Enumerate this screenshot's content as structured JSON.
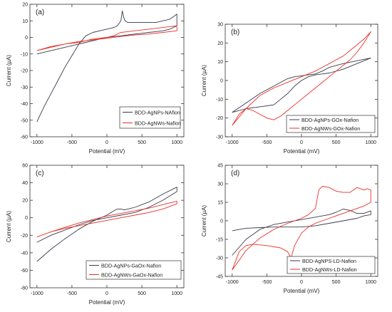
{
  "chart_data": [
    {
      "panel_label": "(a)",
      "type": "line",
      "xlabel": "Potential (mV)",
      "ylabel": "Current (µA)",
      "xlim": [
        -1100,
        1100
      ],
      "ylim": [
        -60,
        20
      ],
      "xticks": [
        "-1000",
        "-500",
        "0",
        "500",
        "1000"
      ],
      "xtick_values": [
        -1000,
        -500,
        0,
        500,
        1000
      ],
      "yticks": [
        "-60",
        "-50",
        "-40",
        "-30",
        "-20",
        "-10",
        "0",
        "10",
        "20"
      ],
      "ytick_values": [
        -60,
        -50,
        -40,
        -30,
        -20,
        -10,
        0,
        10,
        20
      ],
      "legend_position": "bottom-right",
      "series": [
        {
          "name": "BDD-AgNPs-NAfion",
          "color": "#3a3a4a",
          "x": [
            -1000,
            -900,
            -800,
            -700,
            -600,
            -500,
            -400,
            -300,
            -200,
            -100,
            0,
            100,
            150,
            200,
            220,
            240,
            260,
            300,
            400,
            500,
            600,
            700,
            800,
            900,
            1000,
            1000,
            900,
            800,
            700,
            600,
            500,
            400,
            300,
            200,
            100,
            0,
            -100,
            -200,
            -300,
            -400,
            -500,
            -600,
            -700,
            -800,
            -900,
            -1000
          ],
          "y": [
            -51,
            -42,
            -34,
            -26,
            -18,
            -11,
            -4,
            1,
            3,
            4,
            5,
            6,
            7,
            10,
            16,
            12,
            10,
            9,
            9,
            9,
            9,
            9,
            10,
            11,
            14,
            7,
            5,
            4,
            3.5,
            3,
            2.5,
            2,
            1.5,
            1,
            0.5,
            0,
            -1,
            -2,
            -3,
            -4,
            -5,
            -6,
            -7,
            -8,
            -9,
            -10
          ]
        },
        {
          "name": "BDD-AgNWs-Nafion",
          "color": "#e8302a",
          "x": [
            -1000,
            -800,
            -600,
            -400,
            -200,
            0,
            100,
            150,
            200,
            300,
            400,
            600,
            800,
            1000,
            1000,
            800,
            600,
            400,
            200,
            0,
            -200,
            -400,
            -600,
            -800,
            -1000
          ],
          "y": [
            -8,
            -6,
            -4,
            -3,
            -1,
            0,
            1,
            2,
            3,
            3.5,
            4,
            5,
            6,
            7,
            4,
            3,
            2,
            1.5,
            0.5,
            -0.5,
            -1.5,
            -2.5,
            -4,
            -5.5,
            -8
          ]
        }
      ]
    },
    {
      "panel_label": "(b)",
      "type": "line",
      "xlabel": "Potential (mV)",
      "ylabel": "Current (µA)",
      "xlim": [
        -1100,
        1100
      ],
      "ylim": [
        -30,
        30
      ],
      "xticks": [
        "-1000",
        "-500",
        "0",
        "500",
        "1000"
      ],
      "xtick_values": [
        -1000,
        -500,
        0,
        500,
        1000
      ],
      "yticks": [
        "-30",
        "-20",
        "-10",
        "0",
        "10",
        "20",
        "30"
      ],
      "ytick_values": [
        -30,
        -20,
        -10,
        0,
        10,
        20,
        30
      ],
      "legend_position": "bottom-right",
      "series": [
        {
          "name": "BDD-AgNPs-GOx-Nafion",
          "color": "#3a3a4a",
          "x": [
            -1000,
            -800,
            -600,
            -400,
            -300,
            -200,
            -100,
            0,
            100,
            200,
            300,
            400,
            500,
            600,
            800,
            1000,
            1000,
            800,
            600,
            400,
            300,
            200,
            100,
            0,
            -100,
            -200,
            -300,
            -400,
            -600,
            -800,
            -1000
          ],
          "y": [
            -17,
            -12,
            -7,
            -3,
            -1,
            1,
            2,
            2.5,
            3,
            3.5,
            5,
            7,
            8,
            9,
            10.5,
            12,
            12,
            9,
            6,
            4,
            3.5,
            3,
            2,
            0,
            -3,
            -7,
            -10,
            -13,
            -14,
            -15,
            -17
          ]
        },
        {
          "name": "BDD-AgNWs-GOx-Nafion",
          "color": "#e8302a",
          "x": [
            -1000,
            -800,
            -600,
            -400,
            -200,
            0,
            100,
            200,
            300,
            400,
            500,
            600,
            700,
            800,
            900,
            1000,
            1000,
            900,
            800,
            700,
            600,
            500,
            400,
            300,
            200,
            100,
            0,
            -100,
            -200,
            -300,
            -400,
            -500,
            -600,
            -700,
            -800,
            -900,
            -1000
          ],
          "y": [
            -24,
            -15,
            -8,
            -4,
            -1,
            2,
            3.5,
            5,
            7,
            9,
            11,
            13,
            16,
            19,
            22,
            26,
            26,
            20,
            15,
            11,
            8,
            5,
            2,
            -1,
            -4,
            -7,
            -10,
            -13,
            -16,
            -19,
            -21,
            -20,
            -18,
            -16,
            -15,
            -18,
            -24
          ]
        }
      ]
    },
    {
      "panel_label": "(c)",
      "type": "line",
      "xlabel": "Potential (mV)",
      "ylabel": "Current (µA)",
      "xlim": [
        -1100,
        1100
      ],
      "ylim": [
        -80,
        60
      ],
      "xticks": [
        "-1000",
        "-500",
        "0",
        "500",
        "1000"
      ],
      "xtick_values": [
        -1000,
        -500,
        0,
        500,
        1000
      ],
      "yticks": [
        "-80",
        "-60",
        "-40",
        "-20",
        "0",
        "20",
        "40",
        "60"
      ],
      "ytick_values": [
        -80,
        -60,
        -40,
        -20,
        0,
        20,
        40,
        60
      ],
      "legend_position": "bottom-right",
      "series": [
        {
          "name": "BDD-AgNPs-GaOx-Nafion",
          "color": "#3a3a4a",
          "x": [
            -1000,
            -800,
            -600,
            -400,
            -200,
            0,
            100,
            150,
            200,
            250,
            300,
            400,
            600,
            800,
            1000,
            1000,
            800,
            600,
            400,
            200,
            0,
            -200,
            -400,
            -600,
            -800,
            -1000
          ],
          "y": [
            -50,
            -36,
            -24,
            -13,
            -4,
            3,
            8,
            10,
            10,
            9,
            10,
            12,
            18,
            27,
            35,
            30,
            20,
            12,
            6,
            3,
            0,
            -3,
            -8,
            -14,
            -20,
            -28
          ]
        },
        {
          "name": "BDD-AgNWs-GaOx-Nafion",
          "color": "#e8302a",
          "x": [
            -1000,
            -800,
            -600,
            -400,
            -200,
            0,
            200,
            400,
            600,
            800,
            1000,
            1000,
            800,
            600,
            400,
            200,
            0,
            -200,
            -400,
            -600,
            -800,
            -1000
          ],
          "y": [
            -22,
            -16,
            -11,
            -6,
            -2,
            2,
            5,
            8,
            11,
            15,
            19,
            16,
            10,
            6,
            3,
            0,
            -3,
            -6,
            -9,
            -12,
            -16,
            -22
          ]
        }
      ]
    },
    {
      "panel_label": "(d)",
      "type": "line",
      "xlabel": "Potential (mV)",
      "ylabel": "Current (µA)",
      "xlim": [
        -1100,
        1100
      ],
      "ylim": [
        -45,
        45
      ],
      "xticks": [
        "-1000",
        "-500",
        "0",
        "500",
        "1000"
      ],
      "xtick_values": [
        -1000,
        -500,
        0,
        500,
        1000
      ],
      "yticks": [
        "-45",
        "-30",
        "-15",
        "0",
        "15",
        "30",
        "45"
      ],
      "ytick_values": [
        -45,
        -30,
        -15,
        0,
        15,
        30,
        45
      ],
      "legend_position": "bottom-right",
      "series": [
        {
          "name": "BDD-AgNPS-LD-Nafion",
          "color": "#3a3a4a",
          "x": [
            -1000,
            -800,
            -600,
            -400,
            -200,
            0,
            200,
            400,
            500,
            600,
            700,
            800,
            900,
            1000,
            1000,
            900,
            800,
            600,
            400,
            200,
            0,
            -200,
            -400,
            -600,
            -800,
            -1000
          ],
          "y": [
            -28,
            -15,
            -7,
            -3,
            -1,
            1,
            3,
            5,
            7,
            9.5,
            8.5,
            6,
            6,
            8,
            5,
            4,
            2,
            0,
            -2,
            -4,
            -5,
            -5,
            -5,
            -5.5,
            -6,
            -8
          ]
        },
        {
          "name": "BDD-AgNWs-LD-Nafion",
          "color": "#e8302a",
          "x": [
            -1000,
            -800,
            -600,
            -400,
            -200,
            0,
            100,
            200,
            250,
            300,
            400,
            500,
            600,
            700,
            800,
            900,
            950,
            1000,
            1000,
            900,
            800,
            700,
            600,
            500,
            400,
            300,
            200,
            100,
            0,
            -100,
            -150,
            -200,
            -300,
            -500,
            -700,
            -800,
            -900,
            -1000
          ],
          "y": [
            -40,
            -24,
            -14,
            -7,
            -2,
            2,
            5,
            10,
            25,
            28,
            27,
            24,
            23,
            23,
            27,
            25,
            26,
            25,
            15,
            12,
            10,
            8,
            6,
            4,
            2,
            0,
            -2,
            -5,
            -10,
            -20,
            -30,
            -25,
            -22,
            -20,
            -19,
            -20,
            -25,
            -40
          ]
        }
      ]
    }
  ]
}
